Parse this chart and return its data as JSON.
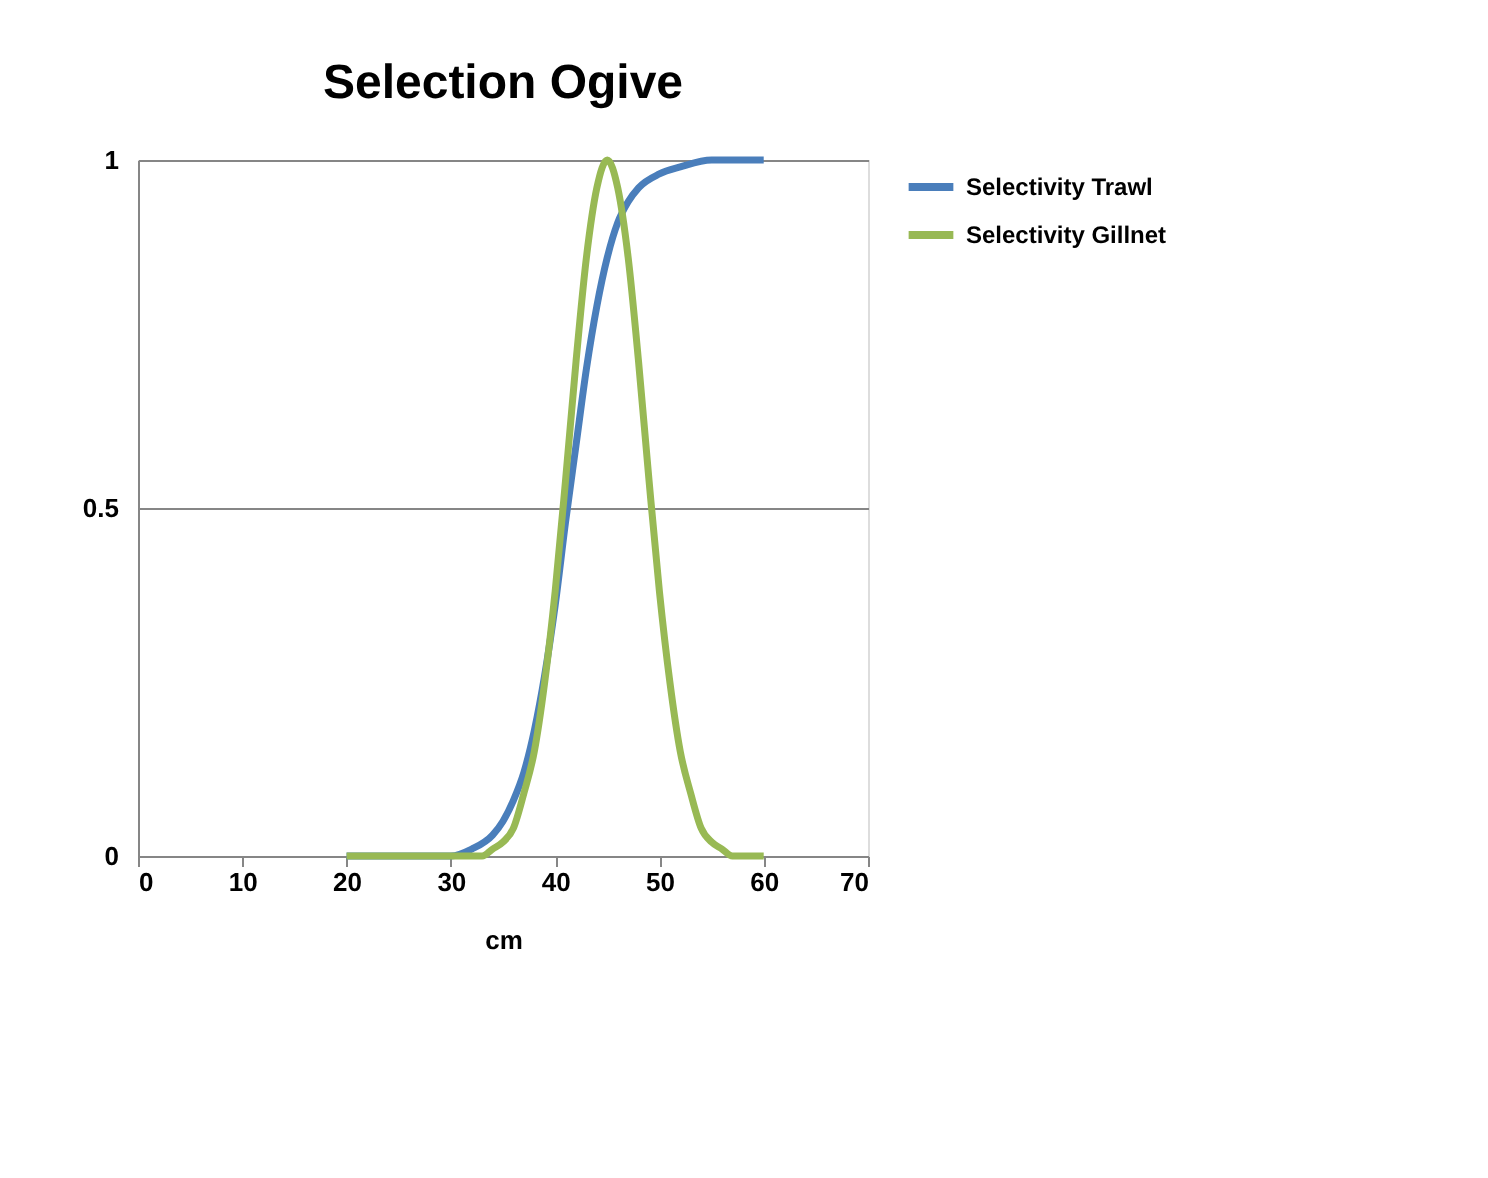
{
  "chart_data": {
    "type": "line",
    "title": "Selection Ogive",
    "xlabel": "cm",
    "xlim": [
      0,
      70
    ],
    "xticks": [
      0,
      10,
      20,
      30,
      40,
      50,
      60,
      70
    ],
    "ylim": [
      0,
      1
    ],
    "yticks": [
      0,
      0.5,
      1
    ],
    "grid": "y",
    "legend": "right",
    "line_style": "solid",
    "marker": "none",
    "series": [
      {
        "name": "Selectivity Trawl",
        "color": "#4a7ebb",
        "x": [
          20,
          25,
          30,
          32,
          34,
          35,
          36,
          37,
          38,
          39,
          40,
          41,
          42,
          43,
          44,
          45,
          46,
          47,
          48,
          50,
          52,
          55,
          60
        ],
        "values": [
          0,
          0,
          0,
          0.01,
          0.03,
          0.05,
          0.08,
          0.12,
          0.18,
          0.26,
          0.36,
          0.48,
          0.59,
          0.7,
          0.79,
          0.86,
          0.91,
          0.94,
          0.96,
          0.98,
          0.99,
          1,
          1
        ]
      },
      {
        "name": "Selectivity Gillnet",
        "color": "#98b954",
        "x": [
          20,
          25,
          30,
          33,
          34,
          35,
          36,
          37,
          38,
          39,
          40,
          41,
          42,
          43,
          44,
          45,
          46,
          47,
          48,
          49,
          50,
          51,
          52,
          53,
          54,
          55,
          56,
          57,
          60
        ],
        "values": [
          0,
          0,
          0,
          0,
          0.01,
          0.02,
          0.04,
          0.09,
          0.15,
          0.25,
          0.38,
          0.54,
          0.71,
          0.86,
          0.96,
          1,
          0.96,
          0.86,
          0.71,
          0.54,
          0.38,
          0.25,
          0.15,
          0.09,
          0.04,
          0.02,
          0.01,
          0,
          0
        ]
      }
    ]
  }
}
